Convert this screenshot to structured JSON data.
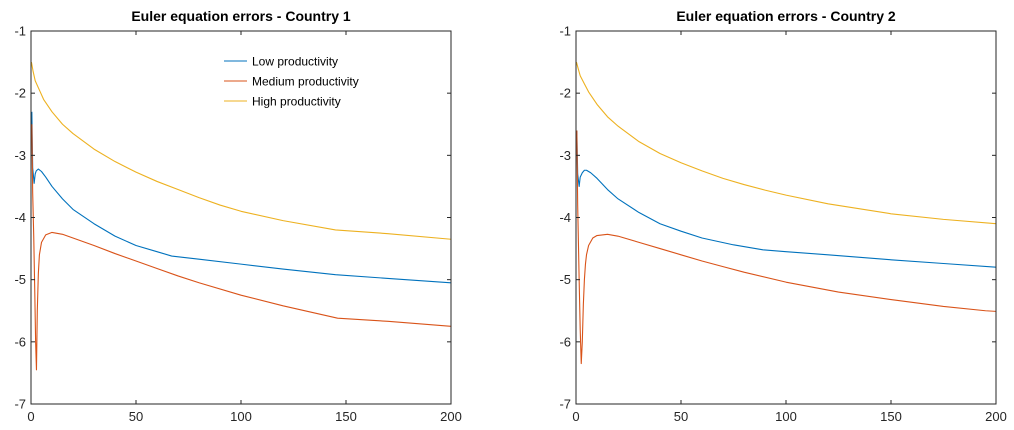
{
  "chart_data": [
    {
      "type": "line",
      "title": "Euler equation errors - Country 1",
      "xlabel": "",
      "ylabel": "",
      "xlim": [
        0,
        200
      ],
      "ylim": [
        -7,
        -1
      ],
      "xticks": [
        0,
        50,
        100,
        150,
        200
      ],
      "yticks": [
        -1,
        -2,
        -3,
        -4,
        -5,
        -6,
        -7
      ],
      "grid": false,
      "legend": "top-right",
      "series": [
        {
          "name": "Low productivity",
          "color": "#0072BD",
          "x": [
            0.4,
            0.8,
            1.5,
            2,
            2.5,
            3.5,
            5,
            7,
            10,
            15,
            20,
            30,
            40,
            50,
            60,
            67,
            80,
            100,
            120,
            145,
            170,
            200
          ],
          "y": [
            -2.3,
            -3.2,
            -3.45,
            -3.3,
            -3.25,
            -3.22,
            -3.26,
            -3.35,
            -3.5,
            -3.7,
            -3.87,
            -4.1,
            -4.3,
            -4.45,
            -4.55,
            -4.62,
            -4.67,
            -4.75,
            -4.83,
            -4.92,
            -4.98,
            -5.05
          ]
        },
        {
          "name": "Medium productivity",
          "color": "#D95319",
          "x": [
            0.4,
            0.8,
            1.3,
            1.8,
            2.2,
            2.6,
            3,
            3.5,
            4,
            5,
            7,
            10,
            15,
            20,
            30,
            40,
            50,
            60,
            70,
            80,
            100,
            120,
            146,
            170,
            200
          ],
          "y": [
            -2.5,
            -3.6,
            -4.3,
            -5.2,
            -6.0,
            -6.45,
            -5.5,
            -4.9,
            -4.6,
            -4.4,
            -4.28,
            -4.24,
            -4.27,
            -4.33,
            -4.45,
            -4.58,
            -4.7,
            -4.82,
            -4.94,
            -5.05,
            -5.25,
            -5.42,
            -5.62,
            -5.67,
            -5.75
          ]
        },
        {
          "name": "High productivity",
          "color": "#EDB120",
          "x": [
            0.2,
            1,
            2,
            4,
            6,
            10,
            15,
            20,
            30,
            40,
            50,
            60,
            70,
            80,
            90,
            100,
            120,
            145,
            170,
            200
          ],
          "y": [
            -1.5,
            -1.65,
            -1.8,
            -1.95,
            -2.1,
            -2.3,
            -2.5,
            -2.65,
            -2.9,
            -3.1,
            -3.27,
            -3.42,
            -3.55,
            -3.68,
            -3.8,
            -3.9,
            -4.05,
            -4.2,
            -4.26,
            -4.35
          ]
        }
      ]
    },
    {
      "type": "line",
      "title": "Euler equation errors - Country 2",
      "xlabel": "",
      "ylabel": "",
      "xlim": [
        0,
        200
      ],
      "ylim": [
        -7,
        -1
      ],
      "xticks": [
        0,
        50,
        100,
        150,
        200
      ],
      "yticks": [
        -1,
        -2,
        -3,
        -4,
        -5,
        -6,
        -7
      ],
      "grid": false,
      "series": [
        {
          "name": "Low productivity",
          "color": "#0072BD",
          "x": [
            0.4,
            0.8,
            1.5,
            2,
            3,
            4,
            5,
            7,
            10,
            15,
            20,
            30,
            40,
            50,
            60,
            75,
            89,
            100,
            120,
            150,
            175,
            200
          ],
          "y": [
            -2.6,
            -3.3,
            -3.5,
            -3.35,
            -3.28,
            -3.24,
            -3.24,
            -3.28,
            -3.37,
            -3.55,
            -3.7,
            -3.92,
            -4.1,
            -4.22,
            -4.33,
            -4.44,
            -4.52,
            -4.55,
            -4.6,
            -4.68,
            -4.74,
            -4.8
          ]
        },
        {
          "name": "Medium productivity",
          "color": "#D95319",
          "x": [
            0.4,
            0.8,
            1.5,
            2,
            2.5,
            3,
            3.5,
            4,
            4.5,
            5,
            6,
            8,
            10,
            15,
            20,
            30,
            40,
            50,
            60,
            70,
            80,
            100,
            125,
            150,
            175,
            195,
            200
          ],
          "y": [
            -2.6,
            -3.8,
            -5.0,
            -5.8,
            -6.35,
            -6.0,
            -5.4,
            -5.0,
            -4.75,
            -4.6,
            -4.45,
            -4.33,
            -4.29,
            -4.27,
            -4.3,
            -4.4,
            -4.5,
            -4.6,
            -4.7,
            -4.79,
            -4.88,
            -5.04,
            -5.2,
            -5.32,
            -5.43,
            -5.5,
            -5.51
          ]
        },
        {
          "name": "High productivity",
          "color": "#EDB120",
          "x": [
            0.2,
            1,
            2,
            4,
            6,
            10,
            15,
            20,
            30,
            40,
            50,
            60,
            70,
            80,
            90,
            100,
            120,
            150,
            175,
            200
          ],
          "y": [
            -1.5,
            -1.6,
            -1.72,
            -1.85,
            -1.98,
            -2.18,
            -2.38,
            -2.53,
            -2.78,
            -2.97,
            -3.12,
            -3.25,
            -3.37,
            -3.47,
            -3.56,
            -3.64,
            -3.78,
            -3.94,
            -4.03,
            -4.1
          ]
        }
      ]
    }
  ]
}
